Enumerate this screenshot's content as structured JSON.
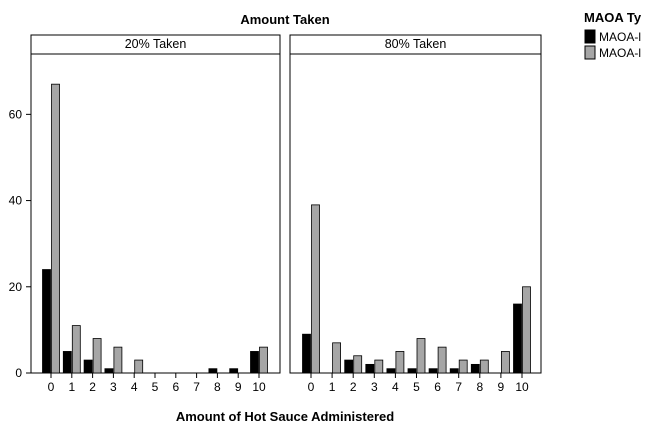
{
  "chart_data": {
    "type": "bar",
    "title": "Amount Taken",
    "xlabel": "Amount of Hot Sauce Administered",
    "ylabel": "",
    "ylim": [
      0,
      74
    ],
    "yticks": [
      "0",
      "20",
      "40",
      "60"
    ],
    "categories": [
      "0",
      "1",
      "2",
      "3",
      "4",
      "5",
      "6",
      "7",
      "8",
      "9",
      "10"
    ],
    "legend": {
      "title": "MAOA Ty",
      "placement": "right",
      "entries": [
        "MAOA-l",
        "MAOA-l"
      ]
    },
    "panels": [
      {
        "label": "20% Taken",
        "series": [
          {
            "color": "#000000",
            "values": [
              24,
              5,
              3,
              1,
              0,
              0,
              0,
              0,
              1,
              1,
              5
            ]
          },
          {
            "color": "#a6a6a6",
            "values": [
              67,
              11,
              8,
              6,
              3,
              0,
              0,
              0,
              0,
              0,
              6
            ]
          }
        ]
      },
      {
        "label": "80% Taken",
        "series": [
          {
            "color": "#000000",
            "values": [
              9,
              0,
              3,
              2,
              1,
              1,
              1,
              1,
              2,
              0,
              16
            ]
          },
          {
            "color": "#a6a6a6",
            "values": [
              39,
              7,
              4,
              3,
              5,
              8,
              6,
              3,
              3,
              5,
              20
            ]
          }
        ]
      }
    ]
  }
}
